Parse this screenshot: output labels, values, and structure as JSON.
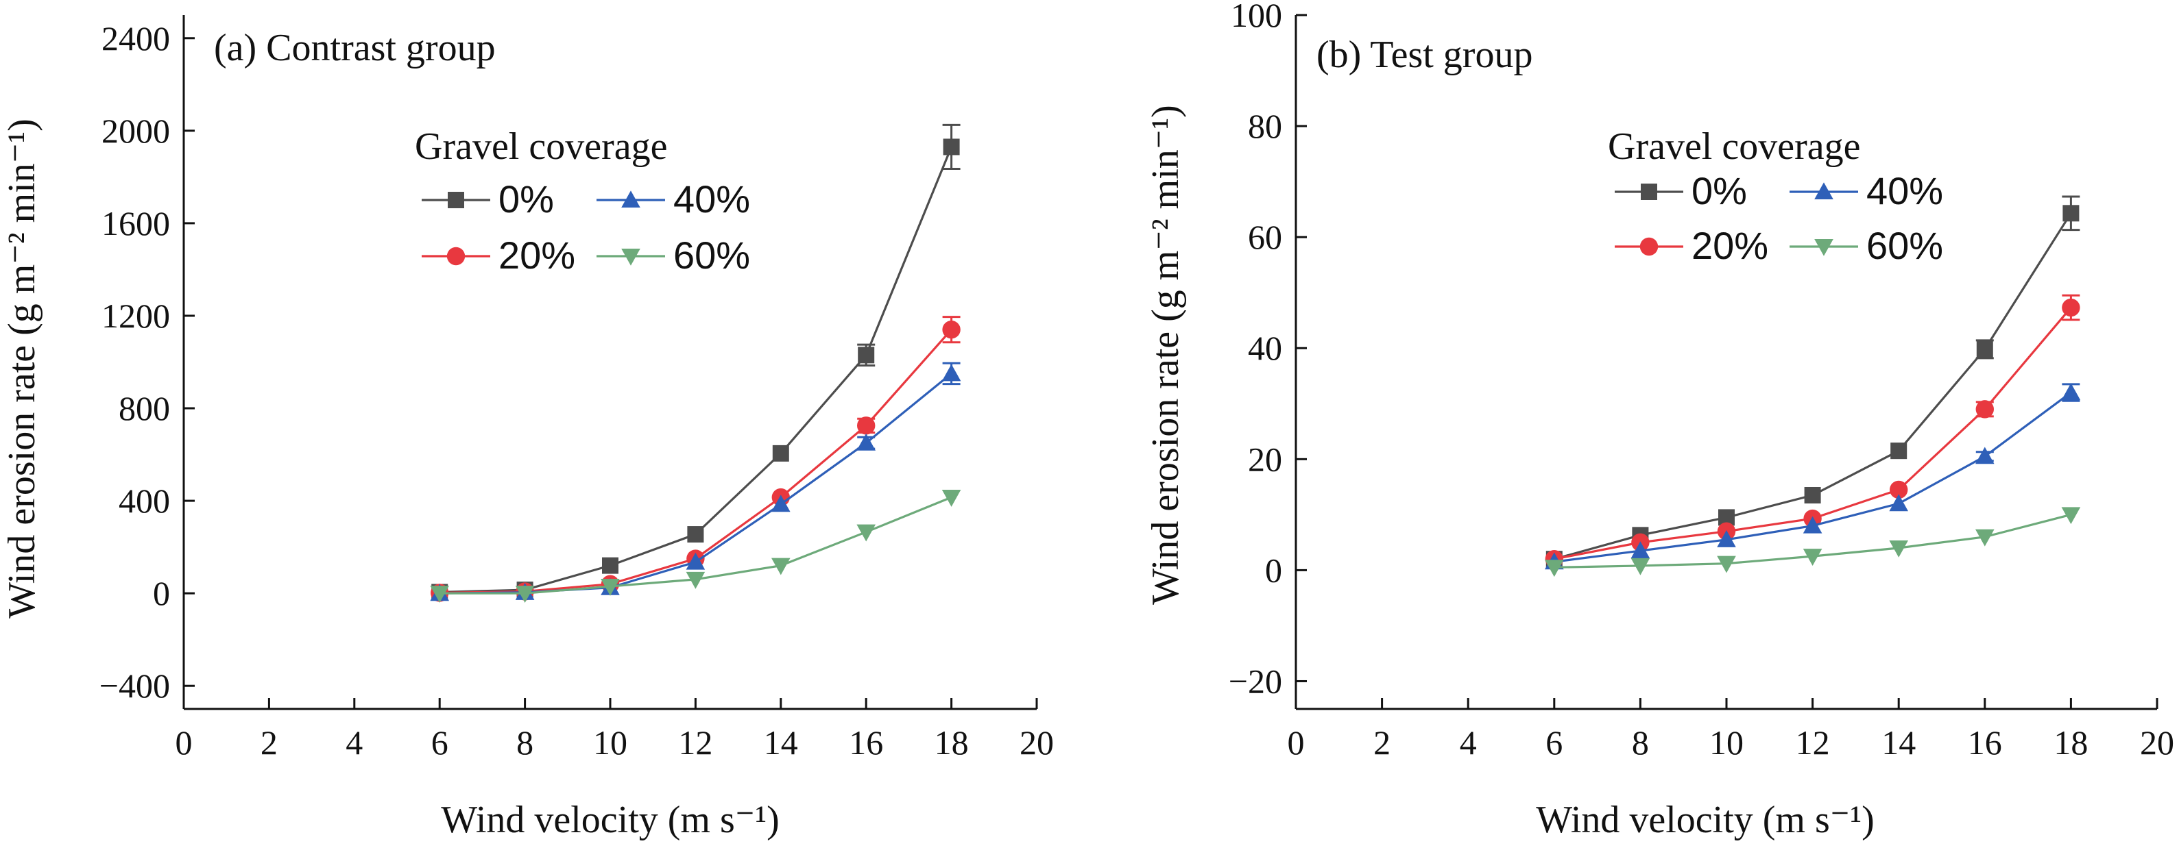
{
  "chart_data": [
    {
      "type": "line",
      "title": "(a) Contrast group",
      "xlabel": "Wind velocity (m s⁻¹)",
      "ylabel": "Wind erosion rate (g m⁻² min⁻¹)",
      "xlim": [
        0,
        20
      ],
      "ylim": [
        -500,
        2500
      ],
      "x_ticks": [
        "0",
        "2",
        "4",
        "6",
        "8",
        "10",
        "12",
        "14",
        "16",
        "18",
        "20"
      ],
      "y_ticks": [
        "−400",
        "0",
        "400",
        "800",
        "1200",
        "1600",
        "2000",
        "2400"
      ],
      "x_tick_values": [
        0,
        2,
        4,
        6,
        8,
        10,
        12,
        14,
        16,
        18,
        20
      ],
      "y_tick_values": [
        -400,
        0,
        400,
        800,
        1200,
        1600,
        2000,
        2400
      ],
      "grid": false,
      "legend": {
        "title": "Gravel coverage",
        "placement": "upper-center"
      },
      "x": [
        6,
        8,
        10,
        12,
        14,
        16,
        18
      ],
      "series": [
        {
          "name": "0%",
          "color": "#4d4d4d",
          "marker": "square",
          "values": [
            5,
            15,
            120,
            255,
            605,
            1030,
            1930
          ],
          "errors": [
            0,
            0,
            0,
            0,
            0,
            45,
            95
          ]
        },
        {
          "name": "20%",
          "color": "#e8383f",
          "marker": "circle",
          "values": [
            2,
            8,
            40,
            150,
            415,
            725,
            1140
          ],
          "errors": [
            0,
            0,
            0,
            0,
            0,
            30,
            55
          ]
        },
        {
          "name": "40%",
          "color": "#2e5fb8",
          "marker": "triangle-up",
          "values": [
            0,
            4,
            25,
            135,
            385,
            650,
            950
          ],
          "errors": [
            0,
            0,
            0,
            0,
            0,
            25,
            45
          ]
        },
        {
          "name": "60%",
          "color": "#6daa7a",
          "marker": "triangle-down",
          "values": [
            0,
            0,
            30,
            60,
            120,
            265,
            415
          ],
          "errors": [
            0,
            0,
            0,
            0,
            0,
            0,
            0
          ]
        }
      ]
    },
    {
      "type": "line",
      "title": "(b) Test group",
      "xlabel": "Wind velocity (m s⁻¹)",
      "ylabel": "Wind erosion rate (g m⁻² min⁻¹)",
      "xlim": [
        0,
        20
      ],
      "ylim": [
        -25,
        100
      ],
      "x_ticks": [
        "0",
        "2",
        "4",
        "6",
        "8",
        "10",
        "12",
        "14",
        "16",
        "18",
        "20"
      ],
      "y_ticks": [
        "−20",
        "0",
        "20",
        "40",
        "60",
        "80",
        "100"
      ],
      "x_tick_values": [
        0,
        2,
        4,
        6,
        8,
        10,
        12,
        14,
        16,
        18,
        20
      ],
      "y_tick_values": [
        -20,
        0,
        20,
        40,
        60,
        80,
        100
      ],
      "grid": false,
      "legend": {
        "title": "Gravel coverage",
        "placement": "upper-center"
      },
      "x": [
        6,
        8,
        10,
        12,
        14,
        16,
        18
      ],
      "series": [
        {
          "name": "0%",
          "color": "#4d4d4d",
          "marker": "square",
          "values": [
            2,
            6.3,
            9.5,
            13.5,
            21.5,
            39.8,
            64.3
          ],
          "errors": [
            0,
            0,
            0,
            0,
            0,
            1.6,
            3
          ]
        },
        {
          "name": "20%",
          "color": "#e8383f",
          "marker": "circle",
          "values": [
            2,
            5,
            7,
            9.3,
            14.5,
            29,
            47.3
          ],
          "errors": [
            0,
            0,
            0,
            0,
            0,
            1.3,
            2.2
          ]
        },
        {
          "name": "40%",
          "color": "#2e5fb8",
          "marker": "triangle-up",
          "values": [
            1.5,
            3.5,
            5.5,
            8,
            12,
            20.5,
            32
          ],
          "errors": [
            0,
            0,
            0,
            0,
            0,
            0.8,
            1.5
          ]
        },
        {
          "name": "60%",
          "color": "#6daa7a",
          "marker": "triangle-down",
          "values": [
            0.5,
            0.8,
            1.2,
            2.5,
            4,
            6,
            10
          ],
          "errors": [
            0,
            0,
            0,
            0,
            0,
            0,
            0
          ]
        }
      ]
    }
  ]
}
